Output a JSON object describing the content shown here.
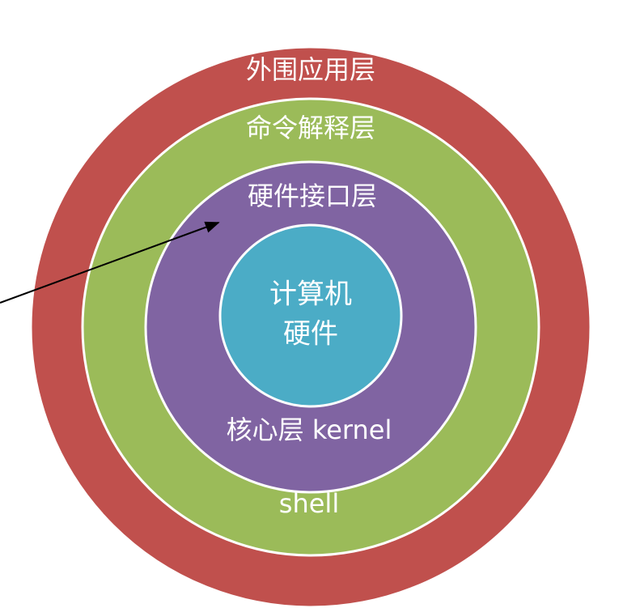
{
  "diagram": {
    "layers": [
      {
        "id": "outer",
        "label": "外围应用层",
        "sublabel": "",
        "color": "#c0504d"
      },
      {
        "id": "shell",
        "label": "命令解释层",
        "sublabel": "shell",
        "color": "#9bbb59"
      },
      {
        "id": "hwif",
        "label": "硬件接口层",
        "sublabel": "",
        "color": "#8064a2"
      },
      {
        "id": "kernel",
        "label": "核心层 kernel",
        "sublabel": "",
        "color": "#8064a2"
      },
      {
        "id": "hardware",
        "label": "计算机",
        "sublabel": "硬件",
        "color": "#4bacc6"
      }
    ],
    "ring_stroke_color": "#ffffff",
    "arrow_color": "#000000"
  }
}
